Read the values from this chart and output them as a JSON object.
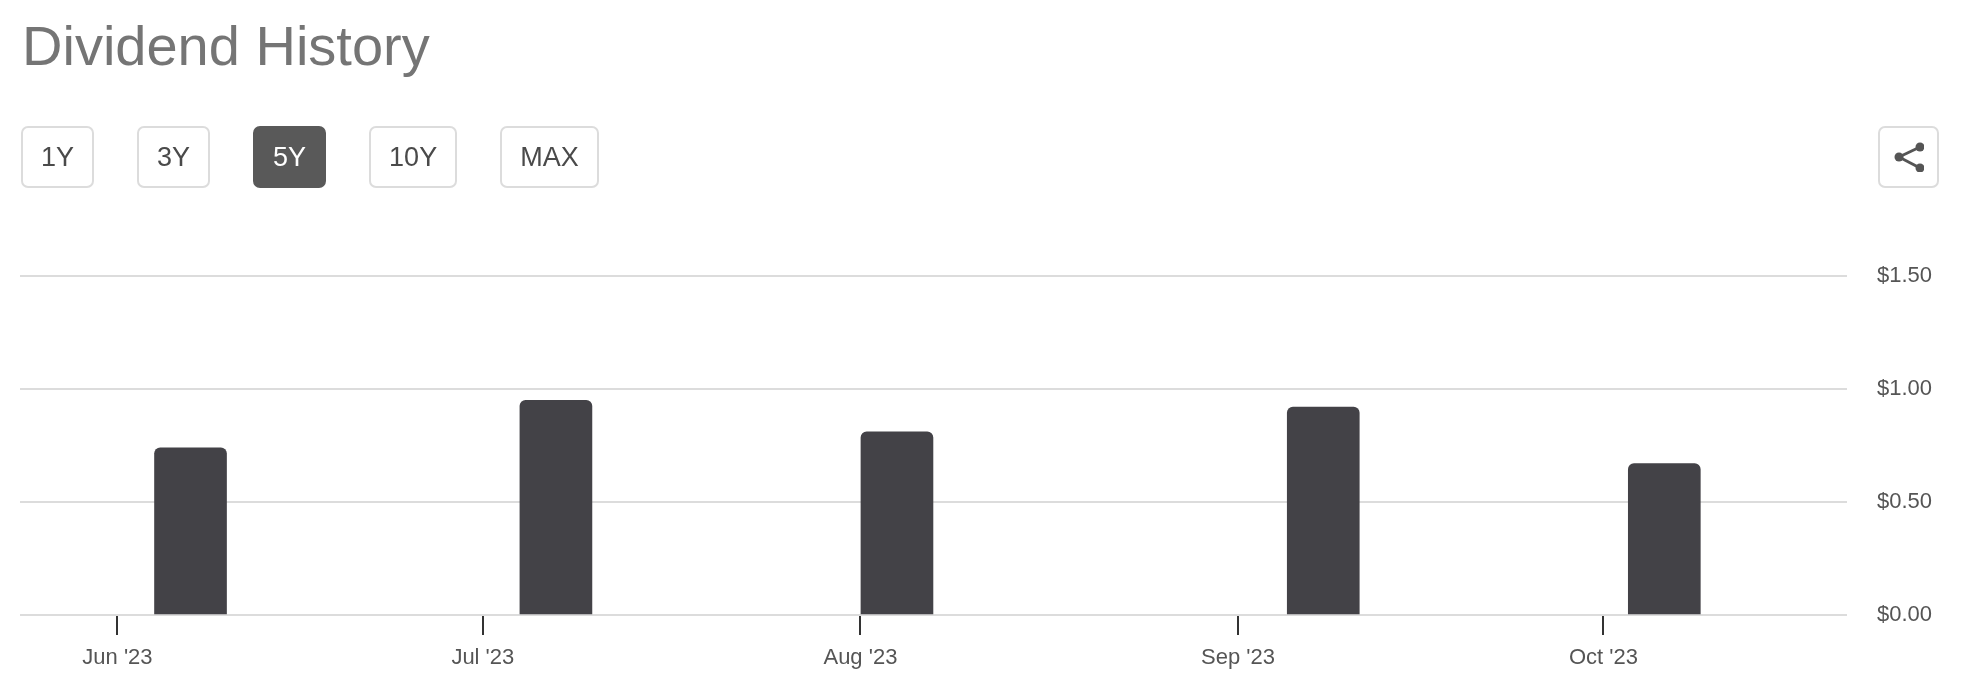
{
  "chart_data": {
    "type": "bar",
    "title": "Dividend History",
    "annotations": [
      "1Y",
      "3Y",
      "5Y",
      "10Y",
      "MAX"
    ],
    "x": [
      "2023-06-07",
      "2023-07-07",
      "2023-08-04",
      "2023-09-08",
      "2023-10-06"
    ],
    "values": [
      0.74,
      0.95,
      0.81,
      0.92,
      0.67
    ],
    "color": "#434247",
    "xlim": [
      "2023-05-24",
      "2023-10-21"
    ],
    "xticks": [
      {
        "value": "2023-06-01",
        "label": "Jun '23"
      },
      {
        "value": "2023-07-01",
        "label": "Jul '23"
      },
      {
        "value": "2023-08-01",
        "label": "Aug '23"
      },
      {
        "value": "2023-09-01",
        "label": "Sep '23"
      },
      {
        "value": "2023-10-01",
        "label": "Oct '23"
      }
    ],
    "ylim": [
      0,
      1.5
    ],
    "yticks": [
      {
        "value": 0,
        "label": "$0.00"
      },
      {
        "value": 0.5,
        "label": "$0.50"
      },
      {
        "value": 1,
        "label": "$1.00"
      },
      {
        "value": 1.5,
        "label": "$1.50"
      }
    ],
    "grid": "y"
  }
}
